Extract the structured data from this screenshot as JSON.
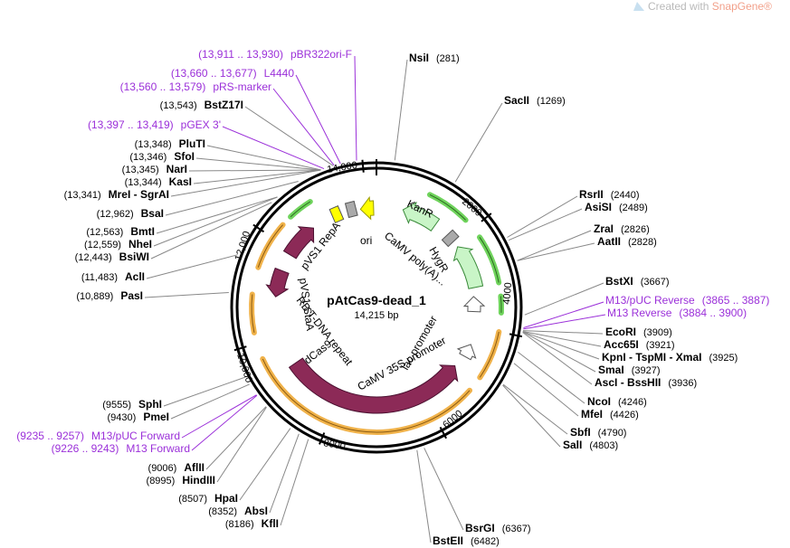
{
  "watermark": {
    "prefix": "Created with",
    "brand": "SnapGene",
    "mark": "®"
  },
  "plasmid": {
    "name": "pAtCas9-dead_1",
    "size": "14,215 bp"
  },
  "ticks": [
    "14,000",
    "2000",
    "4000",
    "6000",
    "8000",
    "10,000",
    "12,000"
  ],
  "enzymes": [
    {
      "name": "NsiI",
      "pos": "(281)"
    },
    {
      "name": "SacII",
      "pos": "(1269)"
    },
    {
      "name": "RsrII",
      "pos": "(2440)"
    },
    {
      "name": "AsiSI",
      "pos": "(2489)"
    },
    {
      "name": "ZraI",
      "pos": "(2826)"
    },
    {
      "name": "AatII",
      "pos": "(2828)"
    },
    {
      "name": "BstXI",
      "pos": "(3667)"
    },
    {
      "name": "EcoRI",
      "pos": "(3909)"
    },
    {
      "name": "Acc65I",
      "pos": "(3921)"
    },
    {
      "name": "KpnI",
      "sep": " - ",
      "name2": "TspMI",
      "sep2": " - ",
      "name3": "XmaI",
      "pos": "(3925)"
    },
    {
      "name": "SmaI",
      "pos": "(3927)"
    },
    {
      "name": "AscI",
      "sep": " - ",
      "name2": "BssHII",
      "pos": "(3936)"
    },
    {
      "name": "NcoI",
      "pos": "(4246)"
    },
    {
      "name": "MfeI",
      "pos": "(4426)"
    },
    {
      "name": "SbfI",
      "pos": "(4790)"
    },
    {
      "name": "SalI",
      "pos": "(4803)"
    },
    {
      "name": "BsrGI",
      "pos": "(6367)"
    },
    {
      "name": "BstEII",
      "pos": "(6482)"
    },
    {
      "name": "KflI",
      "pos": "(8186)"
    },
    {
      "name": "AbsI",
      "pos": "(8352)"
    },
    {
      "name": "HpaI",
      "pos": "(8507)"
    },
    {
      "name": "HindIII",
      "pos": "(8995)"
    },
    {
      "name": "AflII",
      "pos": "(9006)"
    },
    {
      "name": "PmeI",
      "pos": "(9430)"
    },
    {
      "name": "SphI",
      "pos": "(9555)"
    },
    {
      "name": "PasI",
      "pos": "(10,889)"
    },
    {
      "name": "AclI",
      "pos": "(11,483)"
    },
    {
      "name": "BsiWI",
      "pos": "(12,443)"
    },
    {
      "name": "NheI",
      "pos": "(12,559)"
    },
    {
      "name": "BmtI",
      "pos": "(12,563)"
    },
    {
      "name": "BsaI",
      "pos": "(12,962)"
    },
    {
      "name": "MreI",
      "sep": " - ",
      "name2": "SgrAI",
      "pos": "(13,341)"
    },
    {
      "name": "KasI",
      "pos": "(13,344)"
    },
    {
      "name": "NarI",
      "pos": "(13,345)"
    },
    {
      "name": "SfoI",
      "pos": "(13,346)"
    },
    {
      "name": "PluTI",
      "pos": "(13,348)"
    },
    {
      "name": "BstZ17I",
      "pos": "(13,543)"
    }
  ],
  "primers": [
    {
      "name": "pBR322ori-F",
      "pos": "(13,911 .. 13,930)"
    },
    {
      "name": "L4440",
      "pos": "(13,660 .. 13,677)"
    },
    {
      "name": "pRS-marker",
      "pos": "(13,560 .. 13,579)"
    },
    {
      "name": "pGEX 3'",
      "pos": "(13,397 .. 13,419)"
    },
    {
      "name": "M13/pUC Reverse",
      "pos": "(3865 .. 3887)"
    },
    {
      "name": "M13 Reverse",
      "pos": "(3884 .. 3900)"
    },
    {
      "name": "M13/pUC Forward",
      "pos": "(9235 .. 9257)"
    },
    {
      "name": "M13 Forward",
      "pos": "(9226 .. 9243)"
    }
  ],
  "features": {
    "kanr": "KanR",
    "camv_polya": "CaMV poly(A)...",
    "hygr": "HygR",
    "ori": "ori",
    "pvs1_repa": "pVS1 RepA",
    "pvs1_staa": "pVS1 StaA",
    "rb_tdna": "RB T-DNA repeat",
    "dcas9": "dCas9",
    "camv_35s": "CaMV 35S promoter",
    "lac_promoter": "lac promoter"
  },
  "colors": {
    "primer": "#9b30d9",
    "backbone_feature": "#8c2a57",
    "kanr_hygr": "#c9f5c7",
    "ori": "#ffff00",
    "orange_arc": "#f0b24a",
    "green_arc": "#6fd35c"
  }
}
